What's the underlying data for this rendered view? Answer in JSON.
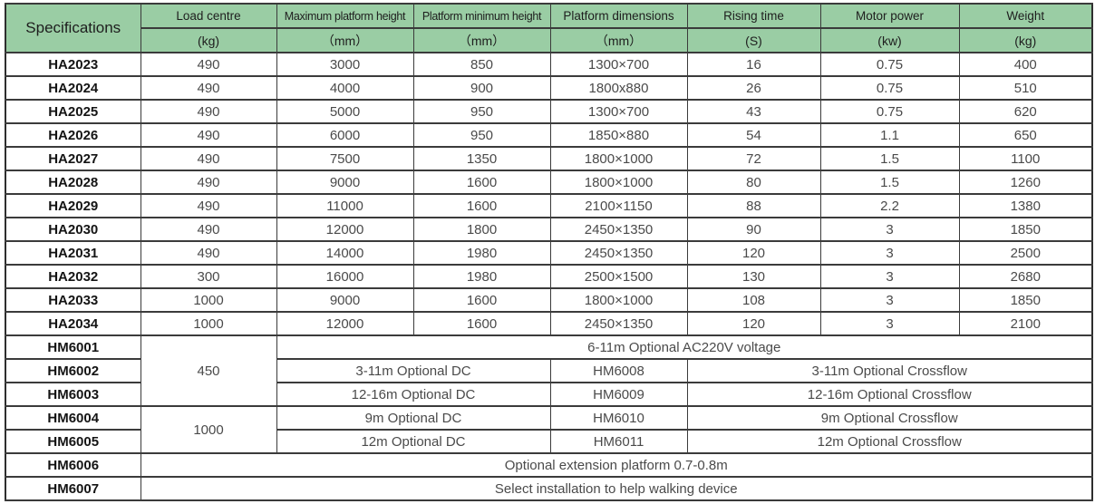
{
  "header": {
    "specifications": "Specifications",
    "columns": [
      {
        "name": "Load centre",
        "unit": "(kg)"
      },
      {
        "name": "Maximum platform height",
        "unit": "（mm）"
      },
      {
        "name": "Platform minimum height",
        "unit": "（mm）"
      },
      {
        "name": "Platform dimensions",
        "unit": "（mm）"
      },
      {
        "name": "Rising time",
        "unit": "(S)"
      },
      {
        "name": "Motor power",
        "unit": "(kw)"
      },
      {
        "name": "Weight",
        "unit": "(kg)"
      }
    ]
  },
  "ha_rows": [
    [
      "HA2023",
      "490",
      "3000",
      "850",
      "1300×700",
      "16",
      "0.75",
      "400"
    ],
    [
      "HA2024",
      "490",
      "4000",
      "900",
      "1800x880",
      "26",
      "0.75",
      "510"
    ],
    [
      "HA2025",
      "490",
      "5000",
      "950",
      "1300×700",
      "43",
      "0.75",
      "620"
    ],
    [
      "HA2026",
      "490",
      "6000",
      "950",
      "1850×880",
      "54",
      "1.1",
      "650"
    ],
    [
      "HA2027",
      "490",
      "7500",
      "1350",
      "1800×1000",
      "72",
      "1.5",
      "1100"
    ],
    [
      "HA2028",
      "490",
      "9000",
      "1600",
      "1800×1000",
      "80",
      "1.5",
      "1260"
    ],
    [
      "HA2029",
      "490",
      "11000",
      "1600",
      "2100×1150",
      "88",
      "2.2",
      "1380"
    ],
    [
      "HA2030",
      "490",
      "12000",
      "1800",
      "2450×1350",
      "90",
      "3",
      "1850"
    ],
    [
      "HA2031",
      "490",
      "14000",
      "1980",
      "2450×1350",
      "120",
      "3",
      "2500"
    ],
    [
      "HA2032",
      "300",
      "16000",
      "1980",
      "2500×1500",
      "130",
      "3",
      "2680"
    ],
    [
      "HA2033",
      "1000",
      "9000",
      "1600",
      "1800×1000",
      "108",
      "3",
      "1850"
    ],
    [
      "HA2034",
      "1000",
      "12000",
      "1600",
      "2450×1350",
      "120",
      "3",
      "2100"
    ]
  ],
  "hm_rows": [
    {
      "cells": [
        {
          "text": "HM6001"
        },
        {
          "text": "450",
          "rowspan": 3
        },
        {
          "text": "6-11m Optional AC220V voltage",
          "colspan": 6
        }
      ]
    },
    {
      "cells": [
        {
          "text": "HM6002"
        },
        {
          "text": "3-11m Optional DC",
          "colspan": 2
        },
        {
          "text": "HM6008"
        },
        {
          "text": "3-11m Optional Crossflow",
          "colspan": 3
        }
      ]
    },
    {
      "cells": [
        {
          "text": "HM6003"
        },
        {
          "text": "12-16m Optional DC",
          "colspan": 2
        },
        {
          "text": "HM6009"
        },
        {
          "text": "12-16m Optional Crossflow",
          "colspan": 3
        }
      ]
    },
    {
      "cells": [
        {
          "text": "HM6004"
        },
        {
          "text": "1000",
          "rowspan": 2
        },
        {
          "text": "9m Optional DC",
          "colspan": 2
        },
        {
          "text": "HM6010"
        },
        {
          "text": "9m Optional Crossflow",
          "colspan": 3
        }
      ]
    },
    {
      "cells": [
        {
          "text": "HM6005"
        },
        {
          "text": "12m Optional DC",
          "colspan": 2
        },
        {
          "text": "HM6011"
        },
        {
          "text": "12m Optional Crossflow",
          "colspan": 3
        }
      ]
    },
    {
      "cells": [
        {
          "text": "HM6006"
        },
        {
          "text": "Optional extension platform 0.7-0.8m",
          "colspan": 7
        }
      ]
    },
    {
      "cells": [
        {
          "text": "HM6007"
        },
        {
          "text": "Select installation to help walking device",
          "colspan": 7
        }
      ]
    }
  ],
  "colors": {
    "header_green": "#9acda4",
    "border": "#3b3b3b",
    "model_text": "#141414",
    "value_text": "#4a4a4a"
  }
}
